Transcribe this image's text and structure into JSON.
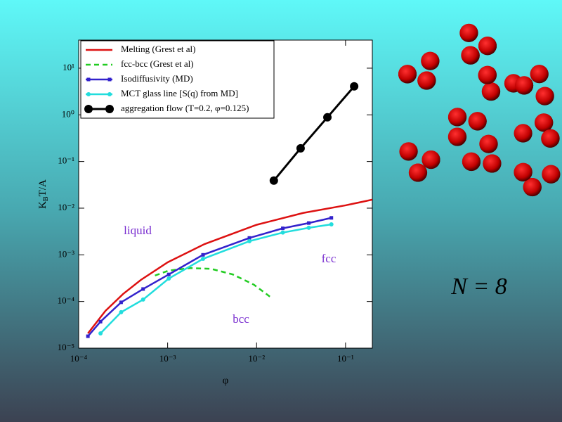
{
  "chart_data": {
    "type": "line",
    "x_label": "φ",
    "y_label": {
      "main": "K",
      "sub": "B",
      "rest": "T/A"
    },
    "x_log": true,
    "y_log": true,
    "xlim": [
      0.0001,
      0.2
    ],
    "ylim": [
      1e-05,
      40
    ],
    "xticks": [
      {
        "value": 0.0001,
        "label": "10⁻⁴"
      },
      {
        "value": 0.001,
        "label": "10⁻³"
      },
      {
        "value": 0.01,
        "label": "10⁻²"
      },
      {
        "value": 0.1,
        "label": "10⁻¹"
      }
    ],
    "yticks": [
      {
        "value": 1e-05,
        "label": "10⁻⁵"
      },
      {
        "value": 0.0001,
        "label": "10⁻⁴"
      },
      {
        "value": 0.001,
        "label": "10⁻³"
      },
      {
        "value": 0.01,
        "label": "10⁻²"
      },
      {
        "value": 0.1,
        "label": "10⁻¹"
      },
      {
        "value": 1,
        "label": "10⁰"
      },
      {
        "value": 10,
        "label": "10¹"
      }
    ],
    "legend": "upper left",
    "series": [
      {
        "name": "Melting  (Grest et al)",
        "color": "#dd1111",
        "marker": "none",
        "dashed": false,
        "x": [
          0.000127,
          0.0002,
          0.000316,
          0.0005,
          0.001,
          0.0026,
          0.01,
          0.0334,
          0.1,
          0.2
        ],
        "values": [
          2.07e-05,
          6.3e-05,
          0.000145,
          0.00029,
          0.00069,
          0.0017,
          0.0044,
          0.0079,
          0.0115,
          0.0152
        ]
      },
      {
        "name": "fcc-bcc (Grest et al)",
        "color": "#22cc22",
        "marker": "none",
        "dashed": true,
        "x": [
          0.00072,
          0.00103,
          0.0018,
          0.0031,
          0.0054,
          0.0093,
          0.0142
        ],
        "values": [
          0.00036,
          0.00046,
          0.00052,
          0.0005,
          0.00038,
          0.00023,
          0.000126
        ]
      },
      {
        "name": "Isodiffusivity (MD)",
        "color": "#3322cc",
        "marker": "square",
        "dashed": false,
        "x": [
          0.000127,
          0.000176,
          0.0003,
          0.00053,
          0.00103,
          0.0025,
          0.0083,
          0.0197,
          0.0386,
          0.0693
        ],
        "values": [
          1.8e-05,
          3.7e-05,
          9.6e-05,
          0.000185,
          0.00038,
          0.001,
          0.0023,
          0.0037,
          0.0048,
          0.0062
        ]
      },
      {
        "name": "MCT glass line [S(q) from MD]",
        "color": "#22dddd",
        "marker": "circle",
        "dashed": false,
        "x": [
          0.000176,
          0.0003,
          0.00053,
          0.00103,
          0.0025,
          0.0083,
          0.0197,
          0.0386,
          0.0693
        ],
        "values": [
          2.07e-05,
          5.9e-05,
          0.00011,
          0.00031,
          0.00082,
          0.00196,
          0.003,
          0.0038,
          0.0045
        ]
      },
      {
        "name": "aggregation flow (T=0.2, φ=0.125)",
        "color": "#000000",
        "marker": "big-circle",
        "dashed": false,
        "x": [
          0.015625,
          0.03125,
          0.0625,
          0.125
        ],
        "values": [
          0.039,
          0.192,
          0.885,
          4.08
        ]
      }
    ],
    "annotations": [
      "liquid",
      "fcc",
      "bcc"
    ]
  },
  "side_label": "N = 8"
}
